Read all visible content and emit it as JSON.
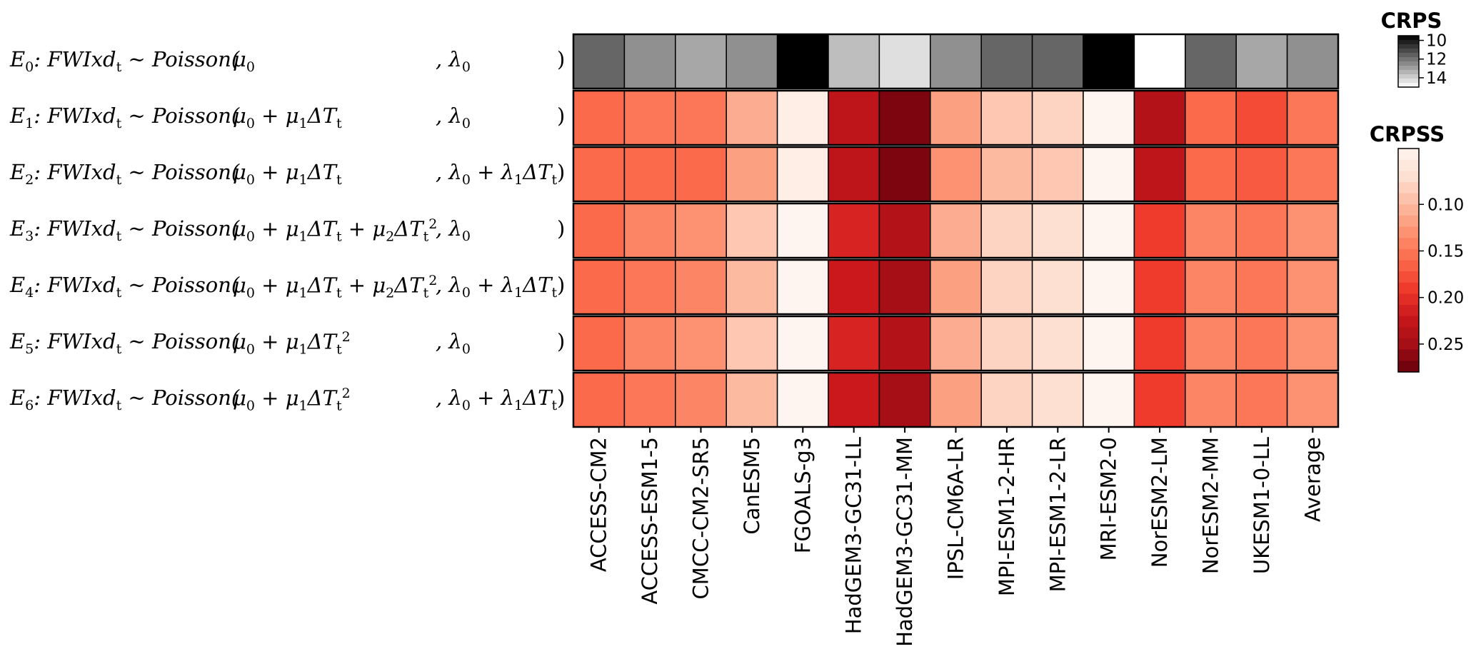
{
  "chart_data": [
    {
      "type": "heatmap",
      "title": "",
      "x": [
        "ACCESS-CM2",
        "ACCESS-ESM1-5",
        "CMCC-CM2-SR5",
        "CanESM5",
        "FGOALS-g3",
        "HadGEM3-GC31-LL",
        "HadGEM3-GC31-MM",
        "IPSL-CM6A-LR",
        "MPI-ESM1-2-HR",
        "MPI-ESM1-2-LR",
        "MRI-ESM2-0",
        "NorESM2-LM",
        "NorESM2-MM",
        "UKESM1-0-LL",
        "Average"
      ],
      "y": [
        "E0"
      ],
      "values": [
        [
          11.7,
          12.6,
          13.1,
          12.6,
          9.5,
          13.6,
          14.3,
          12.6,
          11.7,
          11.7,
          9.5,
          15.0,
          11.7,
          13.1,
          12.6
        ]
      ],
      "colorbar": {
        "title": "CRPS",
        "ticks": [
          10,
          12,
          14
        ],
        "range": [
          9.5,
          15.0
        ],
        "colormap": "Greys",
        "reversed": true
      }
    },
    {
      "type": "heatmap",
      "title": "",
      "x": [
        "ACCESS-CM2",
        "ACCESS-ESM1-5",
        "CMCC-CM2-SR5",
        "CanESM5",
        "FGOALS-g3",
        "HadGEM3-GC31-LL",
        "HadGEM3-GC31-MM",
        "IPSL-CM6A-LR",
        "MPI-ESM1-2-HR",
        "MPI-ESM1-2-LR",
        "MRI-ESM2-0",
        "NorESM2-LM",
        "NorESM2-MM",
        "UKESM1-0-LL",
        "Average"
      ],
      "y": [
        "E1",
        "E2",
        "E3",
        "E4",
        "E5",
        "E6"
      ],
      "values": [
        [
          0.16,
          0.15,
          0.15,
          0.11,
          0.05,
          0.23,
          0.27,
          0.12,
          0.09,
          0.08,
          0.04,
          0.24,
          0.16,
          0.18,
          0.15
        ],
        [
          0.16,
          0.16,
          0.16,
          0.12,
          0.05,
          0.23,
          0.27,
          0.13,
          0.1,
          0.09,
          0.04,
          0.23,
          0.16,
          0.17,
          0.15
        ],
        [
          0.16,
          0.14,
          0.13,
          0.09,
          0.04,
          0.21,
          0.24,
          0.11,
          0.08,
          0.07,
          0.04,
          0.19,
          0.14,
          0.15,
          0.13
        ],
        [
          0.16,
          0.15,
          0.14,
          0.1,
          0.04,
          0.22,
          0.25,
          0.12,
          0.08,
          0.07,
          0.04,
          0.19,
          0.14,
          0.15,
          0.13
        ],
        [
          0.16,
          0.14,
          0.13,
          0.09,
          0.04,
          0.21,
          0.24,
          0.11,
          0.08,
          0.07,
          0.04,
          0.19,
          0.14,
          0.15,
          0.13
        ],
        [
          0.16,
          0.15,
          0.14,
          0.1,
          0.04,
          0.22,
          0.25,
          0.12,
          0.08,
          0.07,
          0.04,
          0.19,
          0.14,
          0.15,
          0.13
        ]
      ],
      "colorbar": {
        "title": "CRPSS",
        "ticks": [
          0.1,
          0.15,
          0.2,
          0.25
        ],
        "range": [
          0.04,
          0.28
        ],
        "colormap": "Reds"
      }
    }
  ],
  "row_labels": [
    {
      "prefix": [
        "E",
        "0",
        ": FWIxd",
        "t",
        " ~ Poisson("
      ],
      "mu": [
        "μ",
        "0"
      ],
      "lam": [
        ", λ",
        "0"
      ],
      "close": ")"
    },
    {
      "prefix": [
        "E",
        "1",
        ": FWIxd",
        "t",
        " ~ Poisson("
      ],
      "mu": [
        "μ",
        "0",
        " + μ",
        "1",
        "ΔT",
        "t"
      ],
      "lam": [
        ", λ",
        "0"
      ],
      "close": ")"
    },
    {
      "prefix": [
        "E",
        "2",
        ": FWIxd",
        "t",
        " ~ Poisson("
      ],
      "mu": [
        "μ",
        "0",
        " + μ",
        "1",
        "ΔT",
        "t"
      ],
      "lam": [
        ", λ",
        "0",
        " + λ",
        "1",
        "ΔT",
        "t"
      ],
      "close": ")"
    },
    {
      "prefix": [
        "E",
        "3",
        ": FWIxd",
        "t",
        " ~ Poisson("
      ],
      "mu": [
        "μ",
        "0",
        " + μ",
        "1",
        "ΔT",
        "t",
        " + μ",
        "2",
        "ΔT",
        "t",
        "2"
      ],
      "lam": [
        ", λ",
        "0"
      ],
      "close": ")"
    },
    {
      "prefix": [
        "E",
        "4",
        ": FWIxd",
        "t",
        " ~ Poisson("
      ],
      "mu": [
        "μ",
        "0",
        " + μ",
        "1",
        "ΔT",
        "t",
        " + μ",
        "2",
        "ΔT",
        "t",
        "2"
      ],
      "lam": [
        ", λ",
        "0",
        " + λ",
        "1",
        "ΔT",
        "t"
      ],
      "close": ")"
    },
    {
      "prefix": [
        "E",
        "5",
        ": FWIxd",
        "t",
        " ~ Poisson("
      ],
      "mu": [
        "μ",
        "0",
        " + μ",
        "1",
        "ΔT",
        "t",
        "2"
      ],
      "lam": [
        ", λ",
        "0"
      ],
      "close": ")"
    },
    {
      "prefix": [
        "E",
        "6",
        ": FWIxd",
        "t",
        " ~ Poisson("
      ],
      "mu": [
        "μ",
        "0",
        " + μ",
        "1",
        "ΔT",
        "t",
        "2"
      ],
      "lam": [
        ", λ",
        "0",
        " + λ",
        "1",
        "ΔT",
        "t"
      ],
      "close": ")"
    }
  ],
  "row_label_format": {
    "prefix": [
      "n",
      "sub",
      "n",
      "sub",
      "n"
    ],
    "mu_1": [
      "n",
      "sub"
    ],
    "mu_2": [
      "n",
      "sub",
      "n",
      "sub",
      "n",
      "sub"
    ],
    "mu_4": [
      "n",
      "sub",
      "n",
      "sub",
      "n",
      "sub",
      "n",
      "sub",
      "n",
      "sub",
      "sup"
    ],
    "mu_3": [
      "n",
      "sub",
      "n",
      "sub",
      "n",
      "sub",
      "sup"
    ],
    "lam_1": [
      "n",
      "sub"
    ],
    "lam_2": [
      "n",
      "sub",
      "n",
      "sub",
      "n",
      "sub"
    ]
  },
  "colors": {
    "crps_dark": "#000000",
    "crps_light": "#ffffff",
    "reds": [
      "#fff5f0",
      "#fee0d2",
      "#fcbba1",
      "#fc9272",
      "#fb6a4a",
      "#ef3b2c",
      "#cb181d",
      "#a50f15",
      "#67000d"
    ]
  }
}
